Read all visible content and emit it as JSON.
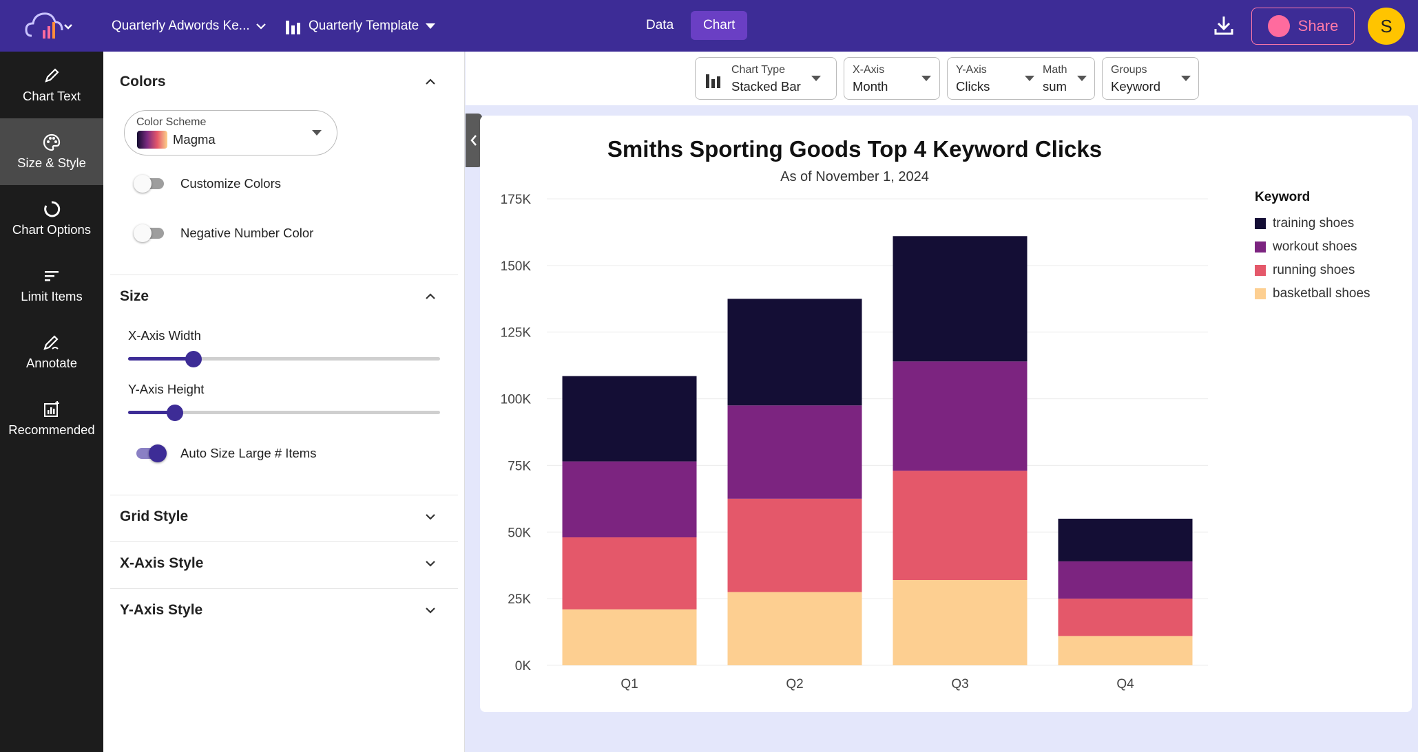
{
  "header": {
    "doc_name": "Quarterly Adwords Ke...",
    "template_name": "Quarterly Template",
    "tab_data": "Data",
    "tab_chart": "Chart",
    "share_label": "Share",
    "avatar_initial": "S"
  },
  "nav": {
    "items": [
      {
        "label": "Chart Text",
        "icon": "pencil-icon"
      },
      {
        "label": "Size & Style",
        "icon": "palette-icon"
      },
      {
        "label": "Chart Options",
        "icon": "ring-icon"
      },
      {
        "label": "Limit Items",
        "icon": "lines-icon"
      },
      {
        "label": "Annotate",
        "icon": "annotate-icon"
      },
      {
        "label": "Recommended",
        "icon": "chart-plus-icon"
      }
    ]
  },
  "panel": {
    "colors_title": "Colors",
    "color_scheme_label": "Color Scheme",
    "color_scheme_value": "Magma",
    "customize_colors": "Customize Colors",
    "negative_color": "Negative Number Color",
    "size_title": "Size",
    "x_width_label": "X-Axis Width",
    "x_width_value": 0.21,
    "y_height_label": "Y-Axis Height",
    "y_height_value": 0.15,
    "auto_size_label": "Auto Size Large # Items",
    "grid_style": "Grid Style",
    "x_axis_style": "X-Axis Style",
    "y_axis_style": "Y-Axis Style"
  },
  "toolbar": {
    "chart_type_label": "Chart Type",
    "chart_type_value": "Stacked Bar",
    "x_axis_label": "X-Axis",
    "x_axis_value": "Month",
    "y_axis_label": "Y-Axis",
    "y_axis_value": "Clicks",
    "math_label": "Math",
    "math_value": "sum",
    "groups_label": "Groups",
    "groups_value": "Keyword"
  },
  "colors": {
    "training shoes": "#140e35",
    "workout shoes": "#7c2480",
    "running shoes": "#e4586a",
    "basketball shoes": "#fdcf91"
  },
  "chart_data": {
    "type": "bar",
    "stacked": true,
    "title": "Smiths Sporting Goods Top 4 Keyword Clicks",
    "subtitle": "As of November 1, 2024",
    "legend_title": "Keyword",
    "legend_position": "right",
    "categories": [
      "Q1",
      "Q2",
      "Q3",
      "Q4"
    ],
    "ylim": [
      0,
      175000
    ],
    "yticks": [
      0,
      25000,
      50000,
      75000,
      100000,
      125000,
      150000,
      175000
    ],
    "ytick_labels": [
      "0K",
      "25K",
      "50K",
      "75K",
      "100K",
      "125K",
      "150K",
      "175K"
    ],
    "grid": true,
    "series": [
      {
        "name": "basketball shoes",
        "values": [
          21000,
          27500,
          32000,
          11000
        ]
      },
      {
        "name": "running shoes",
        "values": [
          27000,
          35000,
          41000,
          14000
        ]
      },
      {
        "name": "workout shoes",
        "values": [
          28500,
          35000,
          41000,
          14000
        ]
      },
      {
        "name": "training shoes",
        "values": [
          32000,
          40000,
          47000,
          16000
        ]
      }
    ]
  }
}
